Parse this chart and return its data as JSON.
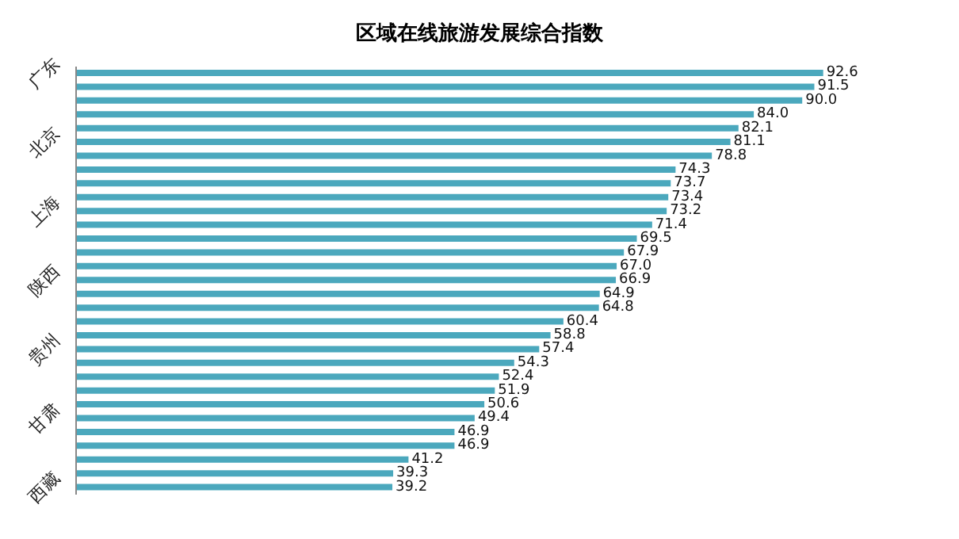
{
  "chart_data": {
    "type": "bar",
    "title": "区域在线旅游发展综合指数",
    "orientation": "horizontal",
    "categories": [
      "广东",
      null,
      null,
      null,
      null,
      "北京",
      null,
      null,
      null,
      null,
      "上海",
      null,
      null,
      null,
      null,
      "陕西",
      null,
      null,
      null,
      null,
      "贵州",
      null,
      null,
      null,
      null,
      "甘肃",
      null,
      null,
      null,
      null,
      "西藏"
    ],
    "values": [
      92.6,
      91.5,
      90.0,
      84.0,
      82.1,
      81.1,
      78.8,
      74.3,
      73.7,
      73.4,
      73.2,
      71.4,
      69.5,
      67.9,
      67.0,
      66.9,
      64.9,
      64.8,
      60.4,
      58.8,
      57.4,
      54.3,
      52.4,
      51.9,
      50.6,
      49.4,
      46.9,
      46.9,
      41.2,
      39.3,
      39.2
    ],
    "value_labels": [
      "92.6",
      "91.5",
      "90.0",
      "84.0",
      "82.1",
      "81.1",
      "78.8",
      "74.3",
      "73.7",
      "73.4",
      "73.2",
      "71.4",
      "69.5",
      "67.9",
      "67.0",
      "66.9",
      "64.9",
      "64.8",
      "60.4",
      "58.8",
      "57.4",
      "54.3",
      "52.4",
      "51.9",
      "50.6",
      "49.4",
      "46.9",
      "46.9",
      "41.2",
      "39.3",
      "39.2"
    ],
    "color": "#4ba8bd",
    "tick_labels": "y"
  }
}
